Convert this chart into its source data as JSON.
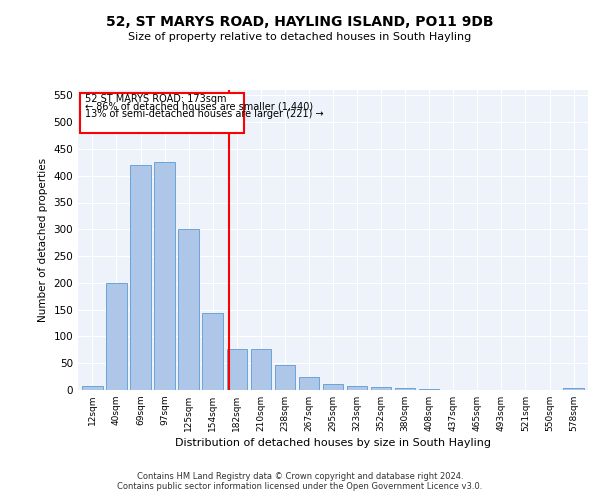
{
  "title": "52, ST MARYS ROAD, HAYLING ISLAND, PO11 9DB",
  "subtitle": "Size of property relative to detached houses in South Hayling",
  "xlabel": "Distribution of detached houses by size in South Hayling",
  "ylabel": "Number of detached properties",
  "categories": [
    "12sqm",
    "40sqm",
    "69sqm",
    "97sqm",
    "125sqm",
    "154sqm",
    "182sqm",
    "210sqm",
    "238sqm",
    "267sqm",
    "295sqm",
    "323sqm",
    "352sqm",
    "380sqm",
    "408sqm",
    "437sqm",
    "465sqm",
    "493sqm",
    "521sqm",
    "550sqm",
    "578sqm"
  ],
  "values": [
    8,
    200,
    420,
    425,
    300,
    143,
    76,
    76,
    47,
    25,
    12,
    8,
    5,
    3,
    2,
    0,
    0,
    0,
    0,
    0,
    3
  ],
  "bar_color": "#aec6e8",
  "bar_edge_color": "#5b9bd5",
  "background_color": "#eef3fb",
  "redline_label": "52 ST MARYS ROAD: 173sqm",
  "annotation_line1": "← 86% of detached houses are smaller (1,440)",
  "annotation_line2": "13% of semi-detached houses are larger (221) →",
  "ylim": [
    0,
    560
  ],
  "yticks": [
    0,
    50,
    100,
    150,
    200,
    250,
    300,
    350,
    400,
    450,
    500,
    550
  ],
  "footer1": "Contains HM Land Registry data © Crown copyright and database right 2024.",
  "footer2": "Contains public sector information licensed under the Open Government Licence v3.0."
}
